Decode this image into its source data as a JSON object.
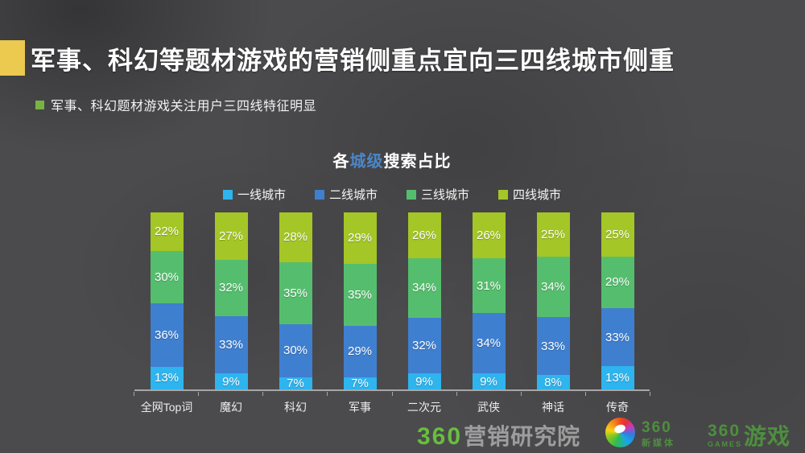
{
  "slide": {
    "title": "军事、科幻等题材游戏的营销侧重点宜向三四线城市侧重",
    "bullet": "军事、科幻题材游戏关注用户三四线特征明显"
  },
  "chart_data": {
    "type": "bar",
    "stacked": true,
    "title": "各城级搜索占比",
    "title_parts": {
      "prefix": "各",
      "highlight": "城级",
      "suffix": "搜索占比"
    },
    "highlight_color": "#4B86C8",
    "unit": "%",
    "legend_position": "top",
    "value_labels": true,
    "ylim": [
      0,
      100
    ],
    "categories": [
      "全网Top词",
      "魔幻",
      "科幻",
      "军事",
      "二次元",
      "武侠",
      "神话",
      "传奇"
    ],
    "series": [
      {
        "name": "一线城市",
        "color": "#2EB4EE",
        "values": [
          13,
          9,
          7,
          7,
          9,
          9,
          8,
          13
        ]
      },
      {
        "name": "二线城市",
        "color": "#3F7FD0",
        "values": [
          36,
          33,
          30,
          29,
          32,
          34,
          33,
          33
        ]
      },
      {
        "name": "三线城市",
        "color": "#55BE6E",
        "values": [
          30,
          32,
          35,
          35,
          34,
          31,
          34,
          29
        ]
      },
      {
        "name": "四线城市",
        "color": "#A4C626",
        "values": [
          22,
          27,
          28,
          29,
          26,
          26,
          25,
          25
        ]
      }
    ]
  },
  "footer": {
    "research_brand": {
      "number": "360",
      "name": "营销研究院"
    },
    "media_brand": {
      "number": "360",
      "name": "新媒体"
    },
    "games_brand": {
      "number": "360",
      "sub": "GAMES",
      "name": "游戏"
    }
  },
  "colors": {
    "background": "#4B4B4D",
    "accent_yellow": "#ECC94F",
    "bullet_green": "#79B442",
    "brand_green_bright": "#68BE3D",
    "brand_green_muted": "#4E8F3E",
    "brand_gray": "#9D9D9D",
    "axis_gray": "#A7A7A7"
  }
}
